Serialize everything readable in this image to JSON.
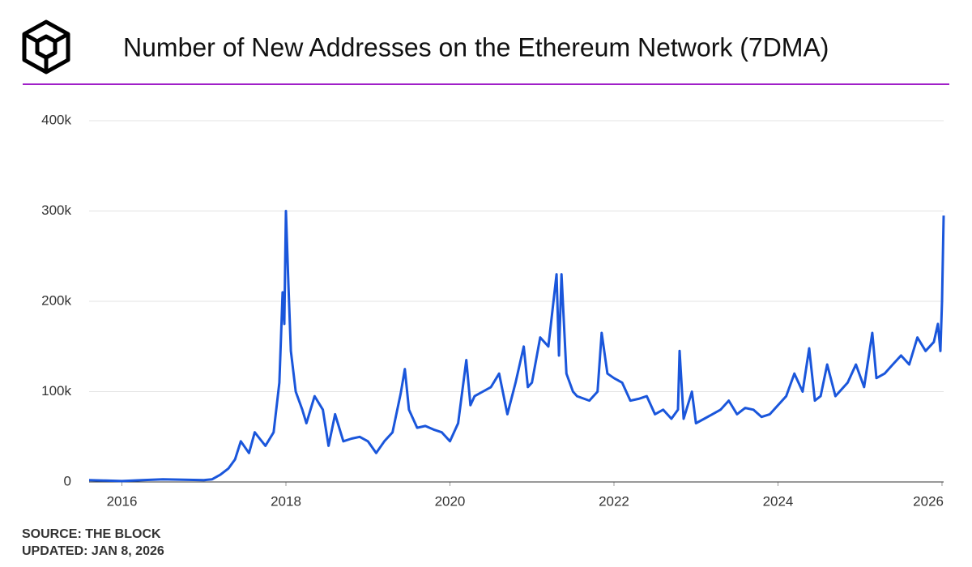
{
  "chart_data": {
    "type": "line",
    "title": "Number of New Addresses on the Ethereum Network (7DMA)",
    "source": "SOURCE: THE BLOCK",
    "updated": "UPDATED: JAN 8, 2026",
    "color": "#1a56db",
    "grid": true,
    "x": [
      2015.6,
      2015.8,
      2016.0,
      2016.25,
      2016.5,
      2016.75,
      2017.0,
      2017.1,
      2017.2,
      2017.3,
      2017.38,
      2017.45,
      2017.55,
      2017.62,
      2017.68,
      2017.75,
      2017.85,
      2017.92,
      2017.96,
      2017.98,
      2018.0,
      2018.03,
      2018.06,
      2018.12,
      2018.2,
      2018.25,
      2018.35,
      2018.45,
      2018.52,
      2018.6,
      2018.7,
      2018.8,
      2018.9,
      2019.0,
      2019.1,
      2019.2,
      2019.3,
      2019.4,
      2019.45,
      2019.5,
      2019.6,
      2019.7,
      2019.8,
      2019.9,
      2020.0,
      2020.1,
      2020.2,
      2020.25,
      2020.3,
      2020.4,
      2020.5,
      2020.6,
      2020.7,
      2020.8,
      2020.9,
      2020.95,
      2021.0,
      2021.1,
      2021.2,
      2021.3,
      2021.33,
      2021.36,
      2021.42,
      2021.5,
      2021.55,
      2021.7,
      2021.8,
      2021.85,
      2021.92,
      2022.0,
      2022.1,
      2022.2,
      2022.3,
      2022.4,
      2022.5,
      2022.6,
      2022.7,
      2022.78,
      2022.8,
      2022.85,
      2022.95,
      2023.0,
      2023.1,
      2023.2,
      2023.3,
      2023.4,
      2023.5,
      2023.6,
      2023.7,
      2023.8,
      2023.9,
      2024.0,
      2024.1,
      2024.2,
      2024.3,
      2024.38,
      2024.45,
      2024.52,
      2024.6,
      2024.7,
      2024.85,
      2024.95,
      2025.05,
      2025.15,
      2025.2,
      2025.3,
      2025.4,
      2025.5,
      2025.6,
      2025.7,
      2025.8,
      2025.9,
      2025.95,
      2025.98,
      2026.0,
      2026.02
    ],
    "values": [
      2000,
      1500,
      1000,
      2000,
      3000,
      2500,
      2000,
      3000,
      8000,
      15000,
      25000,
      45000,
      32000,
      55000,
      48000,
      40000,
      55000,
      110000,
      210000,
      175000,
      300000,
      220000,
      145000,
      100000,
      80000,
      65000,
      95000,
      80000,
      40000,
      75000,
      45000,
      48000,
      50000,
      45000,
      32000,
      45000,
      55000,
      98000,
      125000,
      80000,
      60000,
      62000,
      58000,
      55000,
      45000,
      65000,
      135000,
      85000,
      95000,
      100000,
      105000,
      120000,
      75000,
      110000,
      150000,
      105000,
      110000,
      160000,
      150000,
      230000,
      140000,
      230000,
      120000,
      100000,
      95000,
      90000,
      100000,
      165000,
      120000,
      115000,
      110000,
      90000,
      92000,
      95000,
      75000,
      80000,
      70000,
      80000,
      145000,
      70000,
      100000,
      65000,
      70000,
      75000,
      80000,
      90000,
      75000,
      82000,
      80000,
      72000,
      75000,
      85000,
      95000,
      120000,
      100000,
      148000,
      90000,
      95000,
      130000,
      95000,
      110000,
      130000,
      105000,
      165000,
      115000,
      120000,
      130000,
      140000,
      130000,
      160000,
      145000,
      155000,
      175000,
      145000,
      200000,
      295000
    ],
    "xlim": [
      2015.6,
      2026.02
    ],
    "xticks": [
      2016,
      2018,
      2020,
      2022,
      2024,
      2026
    ],
    "ylim": [
      0,
      400000
    ],
    "yticks": [
      0,
      {
        "value": 100000,
        "label": "100k"
      },
      {
        "value": 200000,
        "label": "200k"
      },
      {
        "value": 300000,
        "label": "300k"
      },
      {
        "value": 400000,
        "label": "400k"
      }
    ]
  }
}
